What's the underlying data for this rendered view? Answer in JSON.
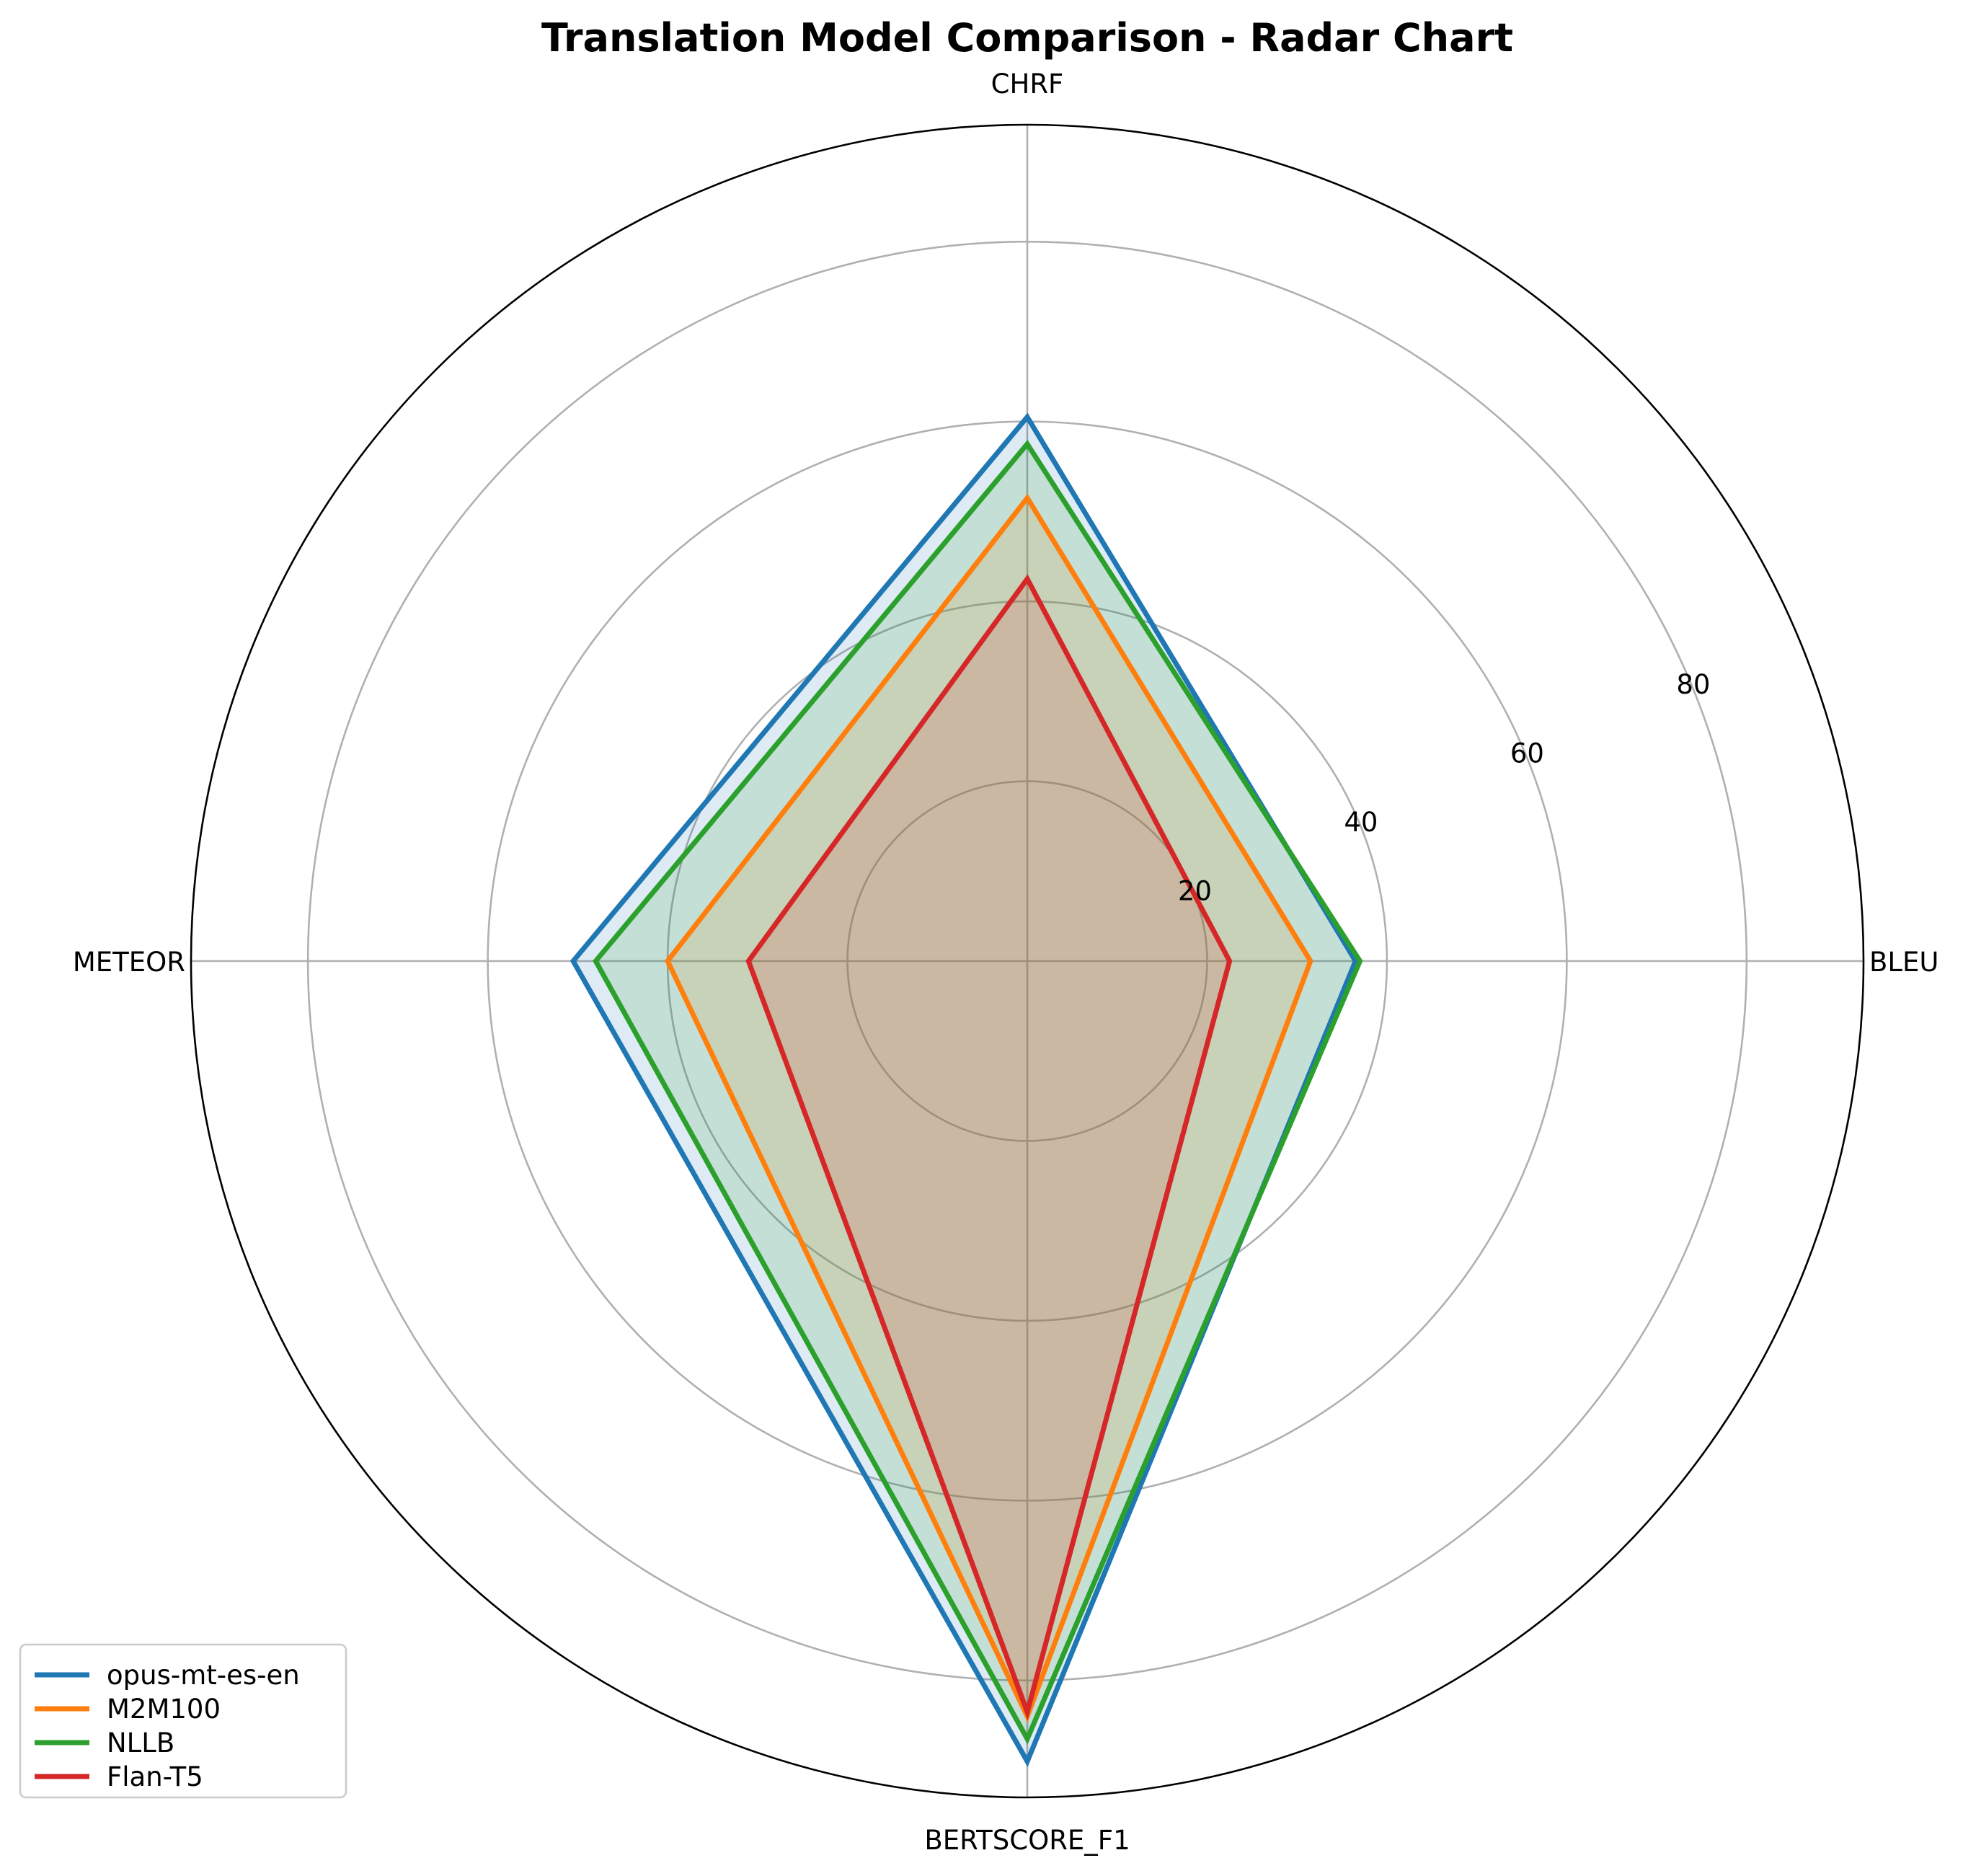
{
  "chart_data": {
    "type": "radar",
    "title": "Translation Model Comparison - Radar Chart",
    "axes": [
      "BLEU",
      "CHRF",
      "METEOR",
      "BERTSCORE_F1"
    ],
    "rlim": [
      0,
      93
    ],
    "rticks": [
      20,
      40,
      60,
      80
    ],
    "rtick_labels": [
      "20",
      "40",
      "60",
      "80"
    ],
    "grid": true,
    "legend_position": "lower-left",
    "series": [
      {
        "name": "opus-mt-es-en",
        "color": "#1f77b4",
        "values": [
          36.5,
          60.5,
          50.5,
          89.0
        ]
      },
      {
        "name": "M2M100",
        "color": "#ff7f0e",
        "values": [
          31.5,
          51.5,
          40.0,
          84.0
        ]
      },
      {
        "name": "NLLB",
        "color": "#2ca02c",
        "values": [
          37.0,
          57.5,
          48.0,
          86.5
        ]
      },
      {
        "name": "Flan-T5",
        "color": "#d62728",
        "values": [
          22.5,
          42.5,
          31.0,
          83.5
        ]
      }
    ]
  }
}
